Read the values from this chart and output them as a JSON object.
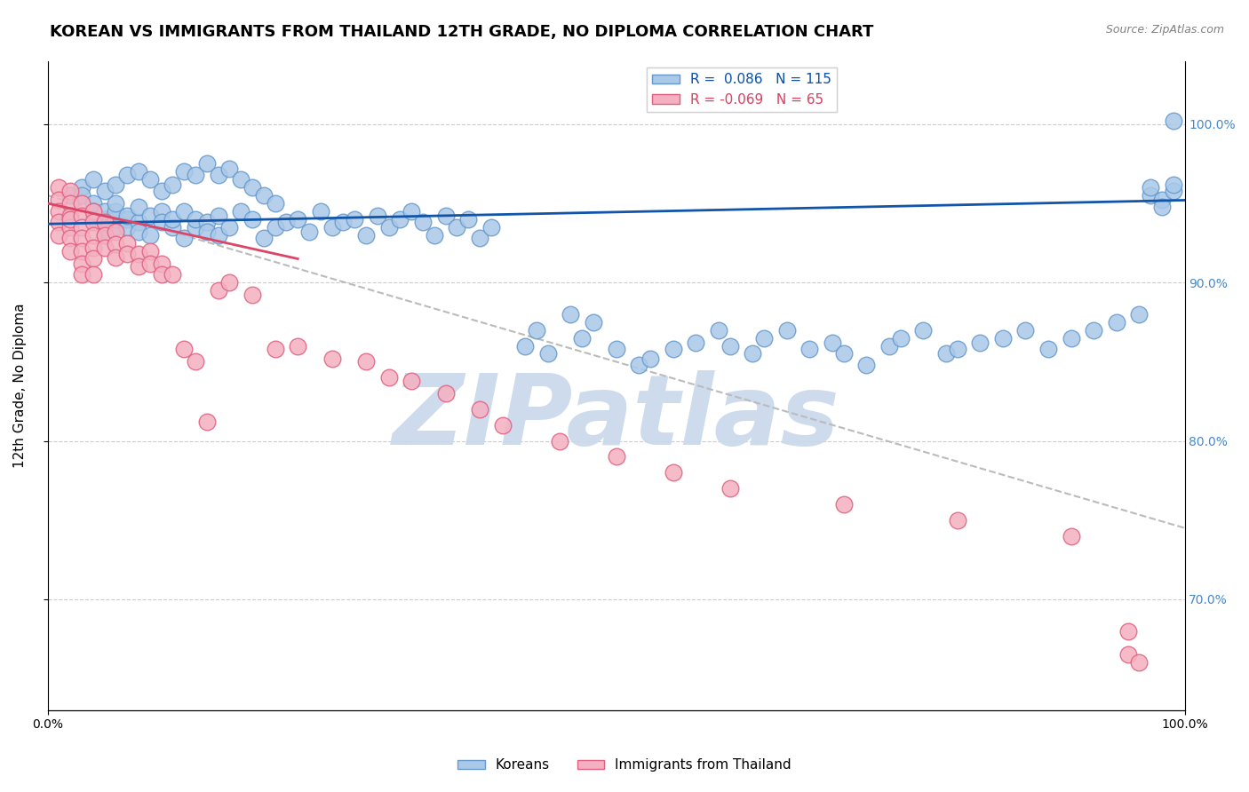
{
  "title": "KOREAN VS IMMIGRANTS FROM THAILAND 12TH GRADE, NO DIPLOMA CORRELATION CHART",
  "source": "Source: ZipAtlas.com",
  "ylabel": "12th Grade, No Diploma",
  "xlim": [
    0.0,
    1.0
  ],
  "ylim": [
    0.63,
    1.04
  ],
  "yticks": [
    0.7,
    0.8,
    0.9,
    1.0
  ],
  "ytick_labels": [
    "70.0%",
    "80.0%",
    "90.0%",
    "100.0%"
  ],
  "xticks": [
    0.0,
    1.0
  ],
  "xtick_labels": [
    "0.0%",
    "100.0%"
  ],
  "background_color": "#ffffff",
  "watermark": "ZIPatlas",
  "watermark_color": "#c8d8ea",
  "korean_facecolor": "#aac8e8",
  "korean_edgecolor": "#6699cc",
  "thai_facecolor": "#f4b0c0",
  "thai_edgecolor": "#e06080",
  "korean_line_color": "#1155aa",
  "thai_line_color": "#dd4466",
  "dashed_line_color": "#bbbbbb",
  "legend_korean_label": "Koreans",
  "legend_thai_label": "Immigrants from Thailand",
  "R_korean": "0.086",
  "N_korean": "115",
  "R_thai": "-0.069",
  "N_thai": "65",
  "title_fontsize": 13,
  "axis_label_fontsize": 11,
  "tick_fontsize": 10,
  "legend_fontsize": 11,
  "right_tick_color": "#4488cc",
  "korean_scatter_x": [
    0.02,
    0.03,
    0.03,
    0.04,
    0.04,
    0.04,
    0.05,
    0.05,
    0.05,
    0.05,
    0.06,
    0.06,
    0.06,
    0.06,
    0.07,
    0.07,
    0.07,
    0.08,
    0.08,
    0.08,
    0.09,
    0.09,
    0.1,
    0.1,
    0.11,
    0.11,
    0.12,
    0.12,
    0.13,
    0.13,
    0.14,
    0.14,
    0.15,
    0.15,
    0.16,
    0.17,
    0.18,
    0.19,
    0.2,
    0.21,
    0.22,
    0.23,
    0.24,
    0.25,
    0.26,
    0.27,
    0.28,
    0.29,
    0.3,
    0.31,
    0.32,
    0.33,
    0.34,
    0.35,
    0.36,
    0.37,
    0.38,
    0.39,
    0.42,
    0.43,
    0.44,
    0.46,
    0.47,
    0.48,
    0.5,
    0.52,
    0.53,
    0.55,
    0.57,
    0.59,
    0.6,
    0.62,
    0.63,
    0.65,
    0.67,
    0.69,
    0.7,
    0.72,
    0.74,
    0.75,
    0.77,
    0.79,
    0.8,
    0.82,
    0.84,
    0.86,
    0.88,
    0.9,
    0.92,
    0.94,
    0.96,
    0.97,
    0.97,
    0.98,
    0.98,
    0.99,
    0.99,
    0.99,
    0.04,
    0.05,
    0.06,
    0.07,
    0.08,
    0.09,
    0.1,
    0.11,
    0.12,
    0.13,
    0.14,
    0.15,
    0.16,
    0.17,
    0.18,
    0.19,
    0.2
  ],
  "korean_scatter_y": [
    0.955,
    0.96,
    0.955,
    0.95,
    0.945,
    0.94,
    0.935,
    0.93,
    0.94,
    0.945,
    0.935,
    0.94,
    0.945,
    0.95,
    0.94,
    0.935,
    0.942,
    0.938,
    0.932,
    0.948,
    0.93,
    0.942,
    0.945,
    0.938,
    0.935,
    0.94,
    0.945,
    0.928,
    0.935,
    0.94,
    0.938,
    0.932,
    0.942,
    0.93,
    0.935,
    0.945,
    0.94,
    0.928,
    0.935,
    0.938,
    0.94,
    0.932,
    0.945,
    0.935,
    0.938,
    0.94,
    0.93,
    0.942,
    0.935,
    0.94,
    0.945,
    0.938,
    0.93,
    0.942,
    0.935,
    0.94,
    0.928,
    0.935,
    0.86,
    0.87,
    0.855,
    0.88,
    0.865,
    0.875,
    0.858,
    0.848,
    0.852,
    0.858,
    0.862,
    0.87,
    0.86,
    0.855,
    0.865,
    0.87,
    0.858,
    0.862,
    0.855,
    0.848,
    0.86,
    0.865,
    0.87,
    0.855,
    0.858,
    0.862,
    0.865,
    0.87,
    0.858,
    0.865,
    0.87,
    0.875,
    0.88,
    0.955,
    0.96,
    0.952,
    0.948,
    0.958,
    0.962,
    1.002,
    0.965,
    0.958,
    0.962,
    0.968,
    0.97,
    0.965,
    0.958,
    0.962,
    0.97,
    0.968,
    0.975,
    0.968,
    0.972,
    0.965,
    0.96,
    0.955,
    0.95
  ],
  "thai_scatter_x": [
    0.01,
    0.01,
    0.01,
    0.01,
    0.01,
    0.02,
    0.02,
    0.02,
    0.02,
    0.02,
    0.02,
    0.02,
    0.03,
    0.03,
    0.03,
    0.03,
    0.03,
    0.03,
    0.03,
    0.04,
    0.04,
    0.04,
    0.04,
    0.04,
    0.04,
    0.05,
    0.05,
    0.05,
    0.06,
    0.06,
    0.06,
    0.07,
    0.07,
    0.08,
    0.08,
    0.09,
    0.09,
    0.1,
    0.1,
    0.11,
    0.12,
    0.13,
    0.14,
    0.15,
    0.16,
    0.18,
    0.2,
    0.22,
    0.25,
    0.28,
    0.3,
    0.32,
    0.35,
    0.38,
    0.4,
    0.45,
    0.5,
    0.55,
    0.6,
    0.7,
    0.8,
    0.9,
    0.95,
    0.95,
    0.96
  ],
  "thai_scatter_y": [
    0.96,
    0.952,
    0.945,
    0.938,
    0.93,
    0.958,
    0.95,
    0.942,
    0.935,
    0.928,
    0.94,
    0.92,
    0.95,
    0.942,
    0.935,
    0.928,
    0.92,
    0.912,
    0.905,
    0.945,
    0.938,
    0.93,
    0.922,
    0.915,
    0.905,
    0.938,
    0.93,
    0.922,
    0.932,
    0.924,
    0.916,
    0.925,
    0.918,
    0.918,
    0.91,
    0.92,
    0.912,
    0.912,
    0.905,
    0.905,
    0.858,
    0.85,
    0.812,
    0.895,
    0.9,
    0.892,
    0.858,
    0.86,
    0.852,
    0.85,
    0.84,
    0.838,
    0.83,
    0.82,
    0.81,
    0.8,
    0.79,
    0.78,
    0.77,
    0.76,
    0.75,
    0.74,
    0.68,
    0.665,
    0.66
  ],
  "korean_line_x": [
    0.0,
    1.0
  ],
  "korean_line_y": [
    0.937,
    0.952
  ],
  "thai_line_x": [
    0.0,
    0.22
  ],
  "thai_line_y": [
    0.95,
    0.915
  ],
  "dash_line_x": [
    0.0,
    1.0
  ],
  "dash_line_y": [
    0.955,
    0.745
  ]
}
